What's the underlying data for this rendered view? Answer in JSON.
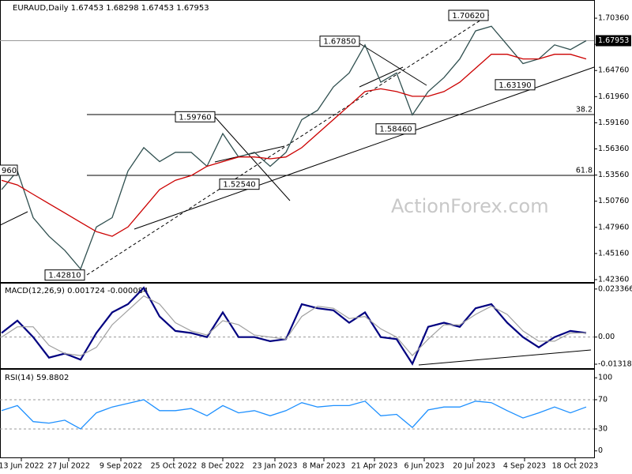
{
  "chart_data": [
    {
      "type": "line",
      "title": "EURAUD,Daily  1.67453 1.68298 1.67453 1.67953",
      "x": [
        0,
        1,
        2,
        3,
        4,
        5,
        6,
        7,
        8,
        9,
        10,
        11,
        12,
        13,
        14,
        15,
        16,
        17,
        18,
        19,
        20,
        21,
        22,
        23,
        24,
        25,
        26,
        27,
        28,
        29,
        30,
        31,
        32,
        33,
        34,
        35,
        36,
        37
      ],
      "xlim": [
        -0.1,
        37.5
      ],
      "ylim": [
        1.4202,
        1.7231
      ],
      "yticks": [
        {
          "value": 1.7036,
          "label": "1.70360"
        },
        {
          "value": 1.6756,
          "label": "1.67560"
        },
        {
          "value": 1.6476,
          "label": "1.64760"
        },
        {
          "value": 1.6196,
          "label": "1.61960"
        },
        {
          "value": 1.5916,
          "label": "1.59160"
        },
        {
          "value": 1.5636,
          "label": "1.56360"
        },
        {
          "value": 1.5356,
          "label": "1.53560"
        },
        {
          "value": 1.5076,
          "label": "1.50760"
        },
        {
          "value": 1.4796,
          "label": "1.47960"
        },
        {
          "value": 1.4516,
          "label": "1.45160"
        },
        {
          "value": 1.4236,
          "label": "1.42360"
        }
      ],
      "series": [
        {
          "name": "EURAUD",
          "color": "#2f4f4f",
          "values": [
            1.52,
            1.54,
            1.49,
            1.47,
            1.455,
            1.435,
            1.48,
            1.49,
            1.54,
            1.565,
            1.55,
            1.56,
            1.56,
            1.545,
            1.58,
            1.555,
            1.56,
            1.545,
            1.56,
            1.595,
            1.605,
            1.63,
            1.645,
            1.675,
            1.635,
            1.645,
            1.6,
            1.625,
            1.64,
            1.66,
            1.69,
            1.695,
            1.675,
            1.655,
            1.66,
            1.675,
            1.67,
            1.6795
          ]
        },
        {
          "name": "MA",
          "color": "#cc0000",
          "values": [
            1.53,
            1.525,
            1.515,
            1.505,
            1.495,
            1.485,
            1.475,
            1.47,
            1.48,
            1.5,
            1.52,
            1.53,
            1.535,
            1.545,
            1.55,
            1.555,
            1.555,
            1.553,
            1.555,
            1.565,
            1.58,
            1.595,
            1.61,
            1.625,
            1.628,
            1.625,
            1.62,
            1.62,
            1.625,
            1.635,
            1.65,
            1.665,
            1.665,
            1.66,
            1.66,
            1.665,
            1.665,
            1.66
          ]
        }
      ],
      "last_price": 1.67953,
      "annotations": [
        {
          "value": 1.7062,
          "label": "1.70620"
        },
        {
          "value": 1.6785,
          "label": "1.67850"
        },
        {
          "value": 1.5976,
          "label": "1.59760"
        },
        {
          "value": 1.5254,
          "label": "1.52540"
        },
        {
          "value": 1.4281,
          "label": "1.42810"
        },
        {
          "value": 1.6319,
          "label": "1.63190"
        },
        {
          "value": 1.5846,
          "label": "1.58460"
        }
      ],
      "cut_label": "960",
      "fib_levels": [
        {
          "ratio": 38.2,
          "price": 1.6004
        },
        {
          "ratio": 61.8,
          "price": 1.5353
        }
      ],
      "watermark": "ActionForex.com"
    },
    {
      "type": "line",
      "title": "MACD(12,26,9) 0.001724 -0.000084",
      "ylim": [
        -0.0151,
        0.02638
      ],
      "yticks": [
        0.023366,
        {
          "value": 0,
          "label": "0.00"
        },
        -0.013186
      ],
      "series": [
        {
          "name": "MACD",
          "color": "#000080",
          "values": [
            0.002,
            0.008,
            0.0,
            -0.01,
            -0.008,
            -0.011,
            0.002,
            0.012,
            0.016,
            0.024,
            0.01,
            0.003,
            0.002,
            0.0,
            0.012,
            0.0,
            0.0,
            -0.002,
            -0.001,
            0.016,
            0.014,
            0.013,
            0.007,
            0.012,
            0.0,
            -0.001,
            -0.013,
            0.005,
            0.007,
            0.005,
            0.014,
            0.016,
            0.007,
            0.0,
            -0.005,
            0.0,
            0.003,
            0.002
          ]
        },
        {
          "name": "Signal",
          "color": "#a0a0a0",
          "values": [
            0.0,
            0.005,
            0.005,
            -0.004,
            -0.008,
            -0.009,
            -0.005,
            0.006,
            0.013,
            0.02,
            0.016,
            0.007,
            0.003,
            0.001,
            0.008,
            0.006,
            0.001,
            0.0,
            -0.001,
            0.01,
            0.015,
            0.014,
            0.009,
            0.01,
            0.004,
            0.0,
            -0.009,
            -0.001,
            0.006,
            0.006,
            0.011,
            0.015,
            0.011,
            0.003,
            -0.002,
            -0.002,
            0.002,
            0.002
          ]
        }
      ]
    },
    {
      "type": "line",
      "title": "RSI(14) 59.8802",
      "ylim": [
        -10,
        111
      ],
      "yticks": [
        100,
        70,
        30,
        0
      ],
      "levels": [
        70,
        30
      ],
      "xticks": [
        {
          "value": 1.25,
          "label": "13 Jun 2022"
        },
        {
          "value": 4.25,
          "label": "27 Jul 2022"
        },
        {
          "value": 7.55,
          "label": "9 Sep 2022"
        },
        {
          "value": 10.9,
          "label": "25 Oct 2022"
        },
        {
          "value": 14,
          "label": "8 Dec 2022"
        },
        {
          "value": 17.3,
          "label": "23 Jan 2023"
        },
        {
          "value": 20.4,
          "label": "8 Mar 2023"
        },
        {
          "value": 23.6,
          "label": "21 Apr 2023"
        },
        {
          "value": 26.75,
          "label": "6 Jun 2023"
        },
        {
          "value": 29.9,
          "label": "20 Jul 2023"
        },
        {
          "value": 33.1,
          "label": "4 Sep 2023"
        },
        {
          "value": 36.3,
          "label": "18 Oct 2023"
        }
      ],
      "series": [
        {
          "name": "RSI",
          "color": "#1e90ff",
          "values": [
            55,
            62,
            40,
            38,
            42,
            30,
            52,
            60,
            65,
            70,
            55,
            55,
            58,
            48,
            62,
            52,
            55,
            48,
            55,
            66,
            60,
            62,
            62,
            68,
            48,
            50,
            32,
            56,
            60,
            60,
            68,
            66,
            55,
            45,
            52,
            60,
            52,
            60
          ]
        }
      ]
    }
  ]
}
